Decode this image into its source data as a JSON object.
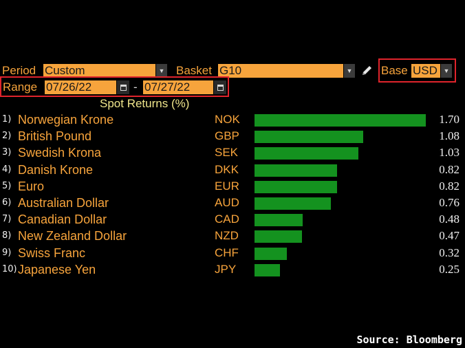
{
  "controls": {
    "period_label": "Period",
    "period_value": "Custom",
    "basket_label": "Basket",
    "basket_value": "G10",
    "base_label": "Base",
    "base_value": "USD",
    "range_label": "Range",
    "range_start": "07/26/22",
    "range_separator": "-",
    "range_end": "07/27/22"
  },
  "table": {
    "title": "Spot Returns (%)",
    "rows": [
      {
        "rank": "1)",
        "name": "Norwegian Krone",
        "code": "NOK",
        "value": "1.70",
        "num": 1.7
      },
      {
        "rank": "2)",
        "name": "British Pound",
        "code": "GBP",
        "value": "1.08",
        "num": 1.08
      },
      {
        "rank": "3)",
        "name": "Swedish Krona",
        "code": "SEK",
        "value": "1.03",
        "num": 1.03
      },
      {
        "rank": "4)",
        "name": "Danish Krone",
        "code": "DKK",
        "value": "0.82",
        "num": 0.82
      },
      {
        "rank": "5)",
        "name": "Euro",
        "code": "EUR",
        "value": "0.82",
        "num": 0.82
      },
      {
        "rank": "6)",
        "name": "Australian Dollar",
        "code": "AUD",
        "value": "0.76",
        "num": 0.76
      },
      {
        "rank": "7)",
        "name": "Canadian Dollar",
        "code": "CAD",
        "value": "0.48",
        "num": 0.48
      },
      {
        "rank": "8)",
        "name": "New Zealand Dollar",
        "code": "NZD",
        "value": "0.47",
        "num": 0.47
      },
      {
        "rank": "9)",
        "name": "Swiss Franc",
        "code": "CHF",
        "value": "0.32",
        "num": 0.32
      },
      {
        "rank": "10)",
        "name": "Japanese Yen",
        "code": "JPY",
        "value": "0.25",
        "num": 0.25
      }
    ]
  },
  "colors": {
    "accent": "#f7a43c",
    "bar": "#14921f",
    "highlight_box": "#e0242c"
  },
  "footer": {
    "source": "Source: Bloomberg"
  }
}
